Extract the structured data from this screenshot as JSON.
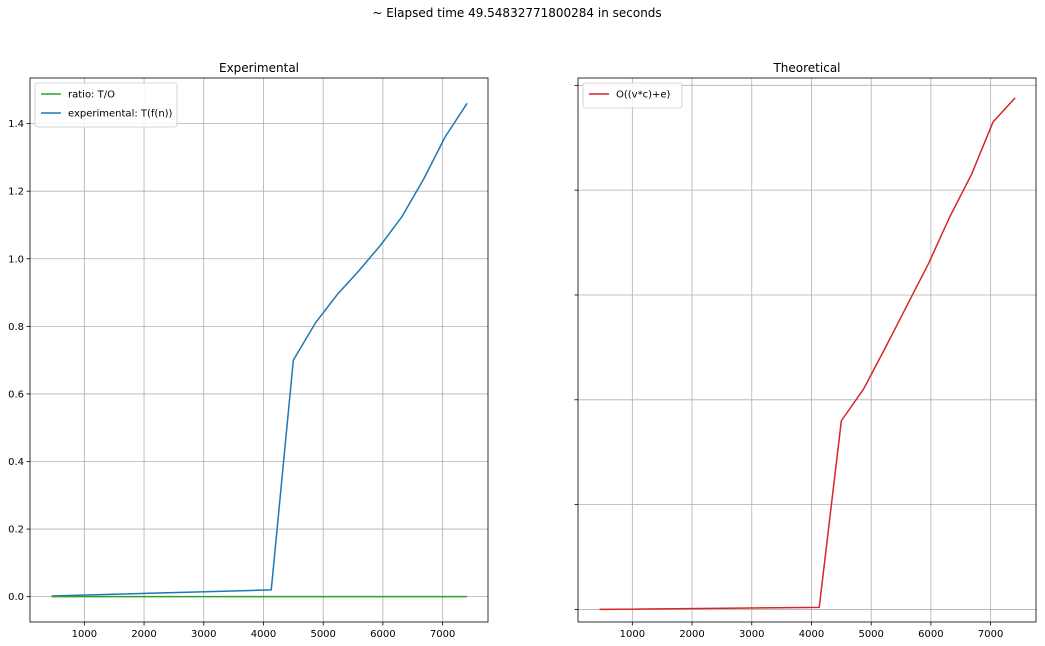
{
  "figure": {
    "suptitle": "~ Elapsed time 49.54832771800284 in seconds"
  },
  "chart_data": [
    {
      "type": "line",
      "title": "Experimental",
      "xlabel": "",
      "ylabel": "",
      "xlim": [
        90,
        7760
      ],
      "ylim": [
        -0.075,
        1.535
      ],
      "xticks": [
        1000,
        2000,
        3000,
        4000,
        5000,
        6000,
        7000
      ],
      "yticks": [
        0.0,
        0.2,
        0.4,
        0.6,
        0.8,
        1.0,
        1.2,
        1.4
      ],
      "grid": true,
      "legend": "upper-left",
      "series": [
        {
          "name": "ratio: T/O",
          "color": "#2ca02c",
          "x": [
            450,
            4130,
            4500,
            4870,
            5240,
            5600,
            5960,
            6320,
            6680,
            7040,
            7410
          ],
          "y": [
            0,
            0,
            0,
            0,
            0,
            0,
            0,
            0,
            0,
            0,
            0
          ]
        },
        {
          "name": "experimental: T(f(n))",
          "color": "#1f77b4",
          "x": [
            450,
            4130,
            4500,
            4870,
            5240,
            5600,
            5960,
            6320,
            6680,
            7040,
            7410
          ],
          "y": [
            0.002,
            0.02,
            0.7,
            0.81,
            0.895,
            0.965,
            1.04,
            1.125,
            1.235,
            1.36,
            1.46
          ]
        }
      ]
    },
    {
      "type": "line",
      "title": "Theoretical",
      "xlabel": "",
      "ylabel": "",
      "xlim": [
        90,
        7760
      ],
      "ylim": [
        -0.12,
        5.07
      ],
      "xticks": [
        1000,
        2000,
        3000,
        4000,
        5000,
        6000,
        7000
      ],
      "yticks": [
        0,
        1,
        2,
        3,
        4,
        5
      ],
      "ytick_labels_visible": false,
      "grid": true,
      "legend": "upper-left",
      "series": [
        {
          "name": "O((v*c)+e)",
          "color": "#d62728",
          "x": [
            450,
            4130,
            4500,
            4870,
            5240,
            5600,
            5960,
            6320,
            6680,
            7040,
            7410
          ],
          "y": [
            0.0,
            0.02,
            1.8,
            2.1,
            2.5,
            2.9,
            3.3,
            3.75,
            4.15,
            4.65,
            4.88
          ]
        }
      ]
    }
  ]
}
